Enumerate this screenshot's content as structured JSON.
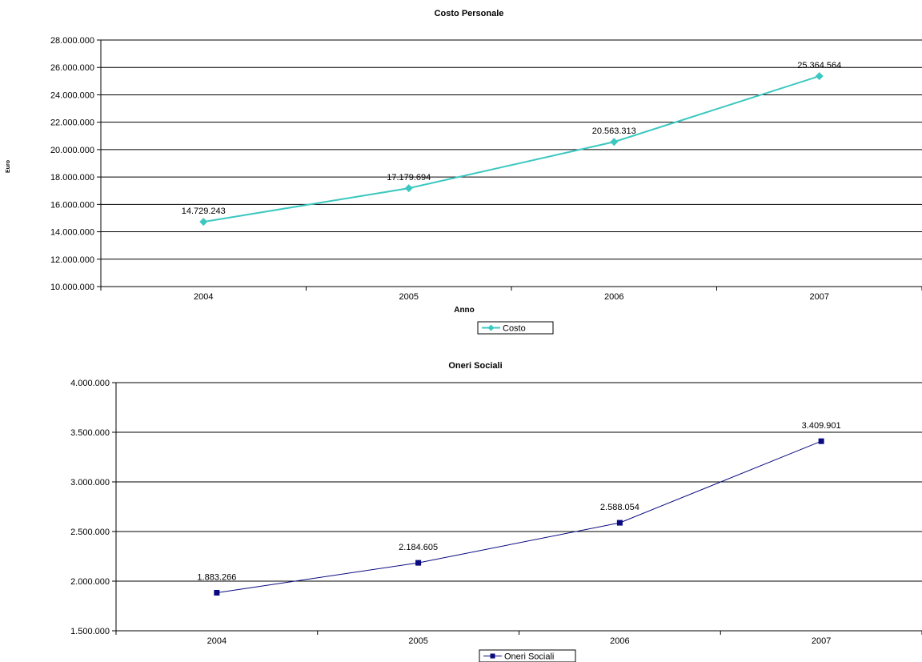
{
  "chart_data": [
    {
      "type": "line",
      "title": "Costo Personale",
      "xlabel": "Anno",
      "ylabel": "Euro",
      "categories": [
        "2004",
        "2005",
        "2006",
        "2007"
      ],
      "series": [
        {
          "name": "Costo",
          "values": [
            14729243,
            17179694,
            20563313,
            25364564
          ],
          "labels": [
            "14.729.243",
            "17.179.694",
            "20.563.313",
            "25.364.564"
          ],
          "color": "#3cc8c0",
          "marker": "diamond"
        }
      ],
      "ylim": [
        10000000,
        28000000
      ],
      "ytick_labels": [
        "10.000.000",
        "12.000.000",
        "14.000.000",
        "16.000.000",
        "18.000.000",
        "20.000.000",
        "22.000.000",
        "24.000.000",
        "26.000.000",
        "28.000.000"
      ],
      "grid": true,
      "legend": "bottom-center"
    },
    {
      "type": "line",
      "title": "Oneri Sociali",
      "xlabel": "",
      "ylabel": "",
      "categories": [
        "2004",
        "2005",
        "2006",
        "2007"
      ],
      "series": [
        {
          "name": "Oneri Sociali",
          "values": [
            1883266,
            2184605,
            2588054,
            3409901
          ],
          "labels": [
            "1.883.266",
            "2.184.605",
            "2.588.054",
            "3.409.901"
          ],
          "color": "#0a0a80",
          "marker": "square"
        }
      ],
      "ylim": [
        1500000,
        4000000
      ],
      "ytick_labels": [
        "1.500.000",
        "2.000.000",
        "2.500.000",
        "3.000.000",
        "3.500.000",
        "4.000.000"
      ],
      "grid": true,
      "legend": "bottom-center"
    }
  ]
}
